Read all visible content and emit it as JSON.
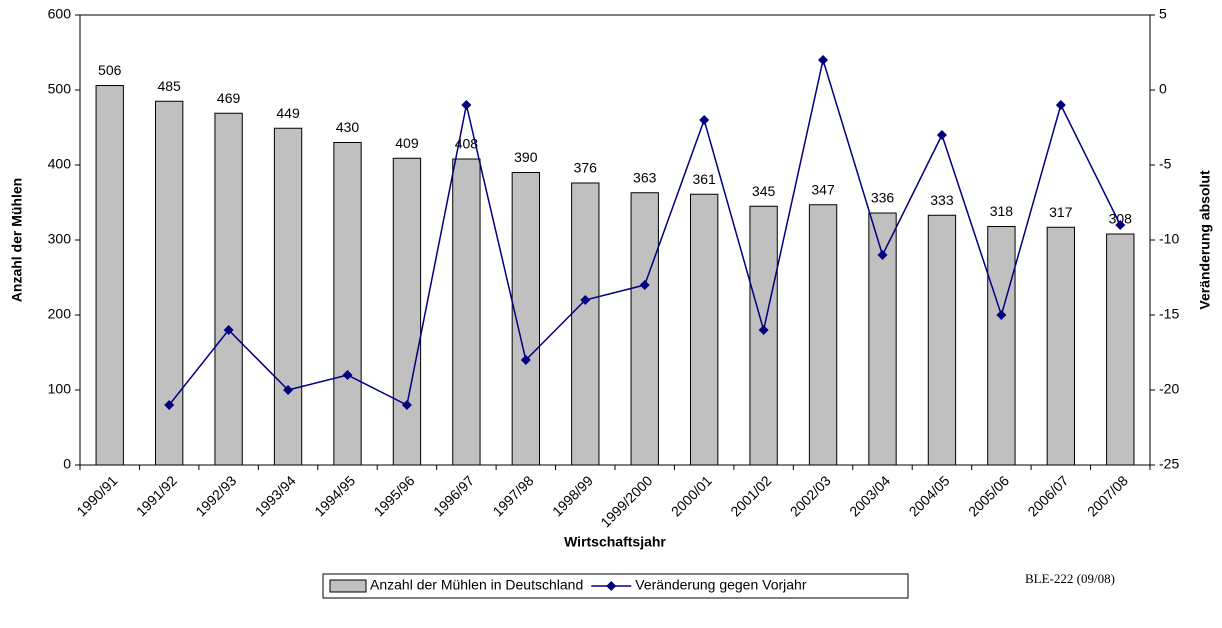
{
  "chart_data": {
    "type": "bar",
    "x_label": "Wirtschaftsjahr",
    "y_label": "Anzahl der Mühlen",
    "y2_label": "Veränderung absolut",
    "note": "BLE-222 (09/08)",
    "categories": [
      "1990/91",
      "1991/92",
      "1992/93",
      "1993/94",
      "1994/95",
      "1995/96",
      "1996/97",
      "1997/98",
      "1998/99",
      "1999/2000",
      "2000/01",
      "2001/02",
      "2002/03",
      "2003/04",
      "2004/05",
      "2005/06",
      "2006/07",
      "2007/08"
    ],
    "series": [
      {
        "name": "Anzahl der Mühlen in Deutschland",
        "type": "bar",
        "color": "#c0c0c0",
        "values": [
          506,
          485,
          469,
          449,
          430,
          409,
          408,
          390,
          376,
          363,
          361,
          345,
          347,
          336,
          333,
          318,
          317,
          308
        ]
      },
      {
        "name": "Veränderung gegen Vorjahr",
        "type": "line",
        "axis": "y2",
        "color": "#000080",
        "values": [
          null,
          -21,
          -16,
          -20,
          -19,
          -21,
          -1,
          -18,
          -14,
          -13,
          -2,
          -16,
          2,
          -11,
          -3,
          -15,
          -1,
          -9
        ]
      }
    ],
    "ylim": [
      0,
      600
    ],
    "yticks": [
      0,
      100,
      200,
      300,
      400,
      500,
      600
    ],
    "y2lim": [
      -25,
      5
    ],
    "y2ticks": [
      -25,
      -20,
      -15,
      -10,
      -5,
      0,
      5
    ]
  }
}
